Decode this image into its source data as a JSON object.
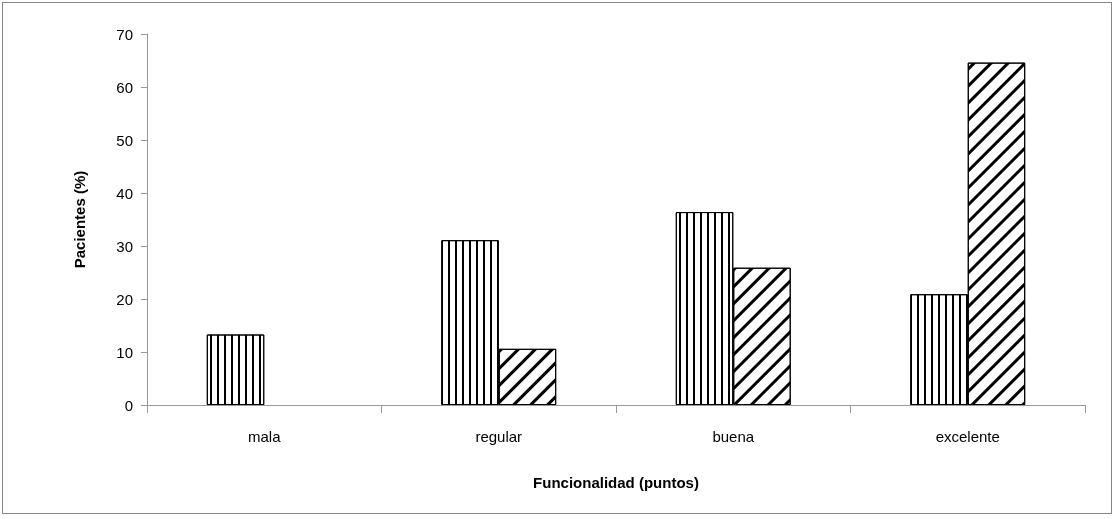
{
  "chart_data": {
    "type": "bar",
    "xlabel": "Funcionalidad (puntos)",
    "ylabel": "Pacientes (%)",
    "categories": [
      "mala",
      "regular",
      "buena",
      "excelente"
    ],
    "series": [
      {
        "color": "#000000",
        "values": [
          13.3,
          31.1,
          36.4,
          20.9
        ]
      },
      {
        "color": "#000000",
        "values": [
          0,
          10.6,
          25.9,
          64.6
        ]
      }
    ],
    "ylim": [
      0,
      70
    ],
    "yticks": [
      0,
      10,
      20,
      30,
      40,
      50,
      60,
      70
    ],
    "grid": false
  }
}
